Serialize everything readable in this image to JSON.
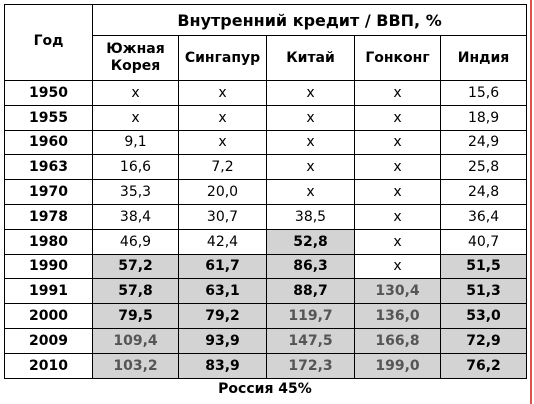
{
  "table": {
    "title": "Внутренний кредит / ВВП, %",
    "year_header": "Год",
    "columns": [
      "Южная\nКорея",
      "Сингапур",
      "Китай",
      "Гонконг",
      "Индия"
    ],
    "rows": [
      [
        "1950",
        "x",
        "x",
        "x",
        "x",
        "15,6"
      ],
      [
        "1955",
        "x",
        "x",
        "x",
        "x",
        "18,9"
      ],
      [
        "1960",
        "9,1",
        "x",
        "x",
        "x",
        "24,9"
      ],
      [
        "1963",
        "16,6",
        "7,2",
        "x",
        "x",
        "25,8"
      ],
      [
        "1970",
        "35,3",
        "20,0",
        "x",
        "x",
        "24,8"
      ],
      [
        "1978",
        "38,4",
        "30,7",
        "38,5",
        "x",
        "36,4"
      ],
      [
        "1980",
        "46,9",
        "42,4",
        "52,8",
        "x",
        "40,7"
      ],
      [
        "1990",
        "57,2",
        "61,7",
        "86,3",
        "x",
        "51,5"
      ],
      [
        "1991",
        "57,8",
        "63,1",
        "88,7",
        "130,4",
        "51,3"
      ],
      [
        "2000",
        "79,5",
        "79,2",
        "119,7",
        "136,0",
        "53,0"
      ],
      [
        "2009",
        "109,4",
        "93,9",
        "147,5",
        "166,8",
        "72,9"
      ],
      [
        "2010",
        "103,2",
        "83,9",
        "172,3",
        "199,0",
        "76,2"
      ]
    ]
  },
  "footer": "Россия 45%"
}
